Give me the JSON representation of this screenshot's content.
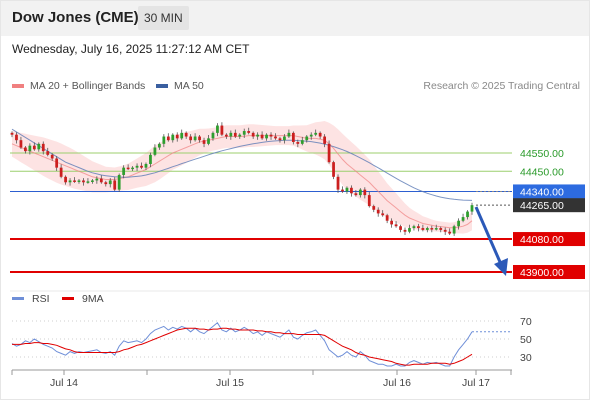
{
  "header": {
    "title": "Dow Jones (CME)",
    "timeframe": "30 MIN"
  },
  "datetime": "Wednesday, July 16, 2025 11:27:12 AM CET",
  "legend": {
    "bollinger_label": "MA 20 + Bollinger Bands",
    "ma50_label": "MA 50",
    "credit": "Research © 2025 Trading Central"
  },
  "colors": {
    "ma20": "#f08080",
    "bands_fill": "#fcdcdc",
    "ma50": "#5b7bb5",
    "candle_up": "#2e9e2e",
    "candle_down": "#cc1f1f",
    "resistance_green": "#9ccf6e",
    "pivot_blue": "#2d5fd0",
    "support_red": "#e00000",
    "arrow": "#2b59b8",
    "rsi_line": "#6f8fd8",
    "rsi_ma": "#e00000"
  },
  "rsi_legend": {
    "rsi_label": "RSI",
    "ma_label": "9MA"
  },
  "chart_data": {
    "type": "candlestick",
    "instrument": "Dow Jones (CME)",
    "timeframe": "30 MIN",
    "x_ticks": [
      "Jul 14",
      "Jul 15",
      "Jul 16",
      "Jul 17"
    ],
    "ylim": [
      43870,
      44750
    ],
    "levels": [
      {
        "value": 44550.0,
        "label": "44550.00",
        "kind": "resistance"
      },
      {
        "value": 44450.0,
        "label": "44450.00",
        "kind": "resistance"
      },
      {
        "value": 44340.0,
        "label": "44340.00",
        "kind": "pivot"
      },
      {
        "value": 44265.0,
        "label": "44265.00",
        "kind": "last"
      },
      {
        "value": 44080.0,
        "label": "44080.00",
        "kind": "support"
      },
      {
        "value": 43900.0,
        "label": "43900.00",
        "kind": "support"
      }
    ],
    "close_series": [
      44650,
      44620,
      44580,
      44560,
      44590,
      44570,
      44600,
      44560,
      44540,
      44520,
      44470,
      44420,
      44390,
      44400,
      44395,
      44400,
      44390,
      44395,
      44400,
      44410,
      44390,
      44380,
      44400,
      44350,
      44430,
      44470,
      44465,
      44470,
      44480,
      44470,
      44490,
      44540,
      44580,
      44600,
      44640,
      44620,
      44650,
      44630,
      44660,
      44640,
      44620,
      44640,
      44620,
      44600,
      44630,
      44660,
      44700,
      44650,
      44640,
      44660,
      44640,
      44650,
      44670,
      44660,
      44640,
      44650,
      44630,
      44650,
      44640,
      44630,
      44620,
      44640,
      44660,
      44610,
      44600,
      44620,
      44640,
      44650,
      44660,
      44640,
      44600,
      44500,
      44420,
      44350,
      44340,
      44360,
      44330,
      44320,
      44350,
      44320,
      44260,
      44240,
      44220,
      44210,
      44180,
      44160,
      44150,
      44130,
      44120,
      44140,
      44150,
      44140,
      44130,
      44140,
      44135,
      44140,
      44130,
      44120,
      44110,
      44150,
      44180,
      44200,
      44230,
      44265
    ],
    "ma20": [
      44600,
      44590,
      44580,
      44570,
      44560,
      44550,
      44540,
      44530,
      44520,
      44510,
      44500,
      44490,
      44480,
      44470,
      44460,
      44450,
      44440,
      44430,
      44420,
      44415,
      44410,
      44405,
      44405,
      44405,
      44410,
      44415,
      44420,
      44430,
      44440,
      44450,
      44460,
      44475,
      44490,
      44505,
      44520,
      44535,
      44550,
      44560,
      44570,
      44580,
      44590,
      44600,
      44610,
      44615,
      44620,
      44625,
      44630,
      44635,
      44640,
      44640,
      44640,
      44640,
      44642,
      44645,
      44645,
      44645,
      44645,
      44645,
      44645,
      44645,
      44645,
      44645,
      44645,
      44645,
      44640,
      44635,
      44630,
      44630,
      44630,
      44625,
      44620,
      44600,
      44575,
      44545,
      44515,
      44490,
      44470,
      44450,
      44430,
      44410,
      44390,
      44365,
      44340,
      44315,
      44290,
      44270,
      44250,
      44230,
      44210,
      44195,
      44185,
      44175,
      44165,
      44160,
      44155,
      44150,
      44148,
      44145,
      44142,
      44142,
      44145,
      44150,
      44160,
      44180
    ],
    "ma50": [
      44680,
      44665,
      44650,
      44635,
      44620,
      44605,
      44590,
      44575,
      44560,
      44545,
      44530,
      44515,
      44500,
      44490,
      44480,
      44470,
      44460,
      44450,
      44442,
      44436,
      44430,
      44426,
      44423,
      44420,
      44419,
      44418,
      44418,
      44420,
      44422,
      44425,
      44430,
      44436,
      44442,
      44450,
      44458,
      44466,
      44475,
      44483,
      44492,
      44500,
      44508,
      44516,
      44524,
      44532,
      44540,
      44548,
      44555,
      44562,
      44568,
      44574,
      44580,
      44586,
      44591,
      44596,
      44600,
      44604,
      44608,
      44611,
      44614,
      44616,
      44618,
      44620,
      44620,
      44620,
      44618,
      44616,
      44614,
      44612,
      44608,
      44604,
      44598,
      44592,
      44585,
      44577,
      44568,
      44558,
      44547,
      44535,
      44523,
      44510,
      44497,
      44483,
      44469,
      44455,
      44440,
      44426,
      44412,
      44398,
      44385,
      44372,
      44360,
      44349,
      44339,
      44330,
      44322,
      44315,
      44309,
      44304,
      44300,
      44297,
      44295,
      44293,
      44292,
      44291
    ],
    "band_halfwidth": [
      70,
      75,
      80,
      85,
      90,
      95,
      100,
      105,
      108,
      110,
      112,
      112,
      110,
      108,
      105,
      100,
      95,
      90,
      85,
      80,
      75,
      70,
      68,
      66,
      66,
      68,
      72,
      76,
      80,
      85,
      90,
      95,
      100,
      100,
      98,
      95,
      92,
      90,
      88,
      85,
      80,
      76,
      72,
      68,
      64,
      62,
      62,
      62,
      62,
      62,
      62,
      62,
      62,
      62,
      62,
      60,
      58,
      56,
      54,
      52,
      52,
      52,
      52,
      55,
      60,
      66,
      72,
      80,
      88,
      96,
      105,
      115,
      125,
      135,
      140,
      142,
      140,
      138,
      135,
      130,
      125,
      118,
      110,
      102,
      95,
      88,
      80,
      72,
      64,
      56,
      50,
      45,
      40,
      36,
      32,
      30,
      28,
      28,
      28,
      30,
      34,
      40,
      46,
      52
    ],
    "rsi": {
      "ylim": [
        0,
        100
      ],
      "ticks": [
        70,
        50,
        30
      ],
      "values": [
        45,
        42,
        44,
        48,
        46,
        50,
        47,
        44,
        42,
        40,
        36,
        34,
        32,
        36,
        34,
        36,
        35,
        36,
        37,
        38,
        35,
        34,
        36,
        32,
        42,
        48,
        46,
        47,
        48,
        46,
        50,
        56,
        60,
        62,
        64,
        60,
        63,
        61,
        64,
        62,
        58,
        62,
        58,
        56,
        60,
        64,
        68,
        60,
        58,
        62,
        58,
        60,
        63,
        60,
        56,
        58,
        54,
        58,
        56,
        54,
        52,
        56,
        60,
        52,
        50,
        54,
        57,
        58,
        60,
        54,
        48,
        38,
        34,
        30,
        32,
        36,
        32,
        30,
        36,
        32,
        26,
        24,
        22,
        22,
        20,
        20,
        22,
        20,
        20,
        24,
        26,
        24,
        22,
        24,
        23,
        24,
        22,
        20,
        20,
        30,
        38,
        44,
        50,
        58
      ],
      "ma9": [
        44,
        44,
        44,
        45,
        45,
        46,
        46,
        45,
        45,
        44,
        43,
        41,
        39,
        38,
        36,
        35,
        35,
        35,
        35,
        35,
        35,
        35,
        35,
        35,
        36,
        38,
        39,
        41,
        43,
        44,
        46,
        48,
        50,
        52,
        54,
        56,
        58,
        60,
        61,
        62,
        62,
        62,
        61,
        61,
        60,
        61,
        61,
        62,
        62,
        61,
        61,
        60,
        60,
        60,
        60,
        59,
        59,
        58,
        58,
        57,
        57,
        56,
        56,
        56,
        55,
        55,
        55,
        55,
        55,
        55,
        54,
        51,
        48,
        45,
        42,
        40,
        38,
        35,
        33,
        32,
        30,
        29,
        28,
        27,
        26,
        25,
        23,
        22,
        21,
        21,
        22,
        22,
        22,
        22,
        23,
        23,
        23,
        23,
        22,
        23,
        25,
        27,
        30,
        33
      ]
    }
  }
}
